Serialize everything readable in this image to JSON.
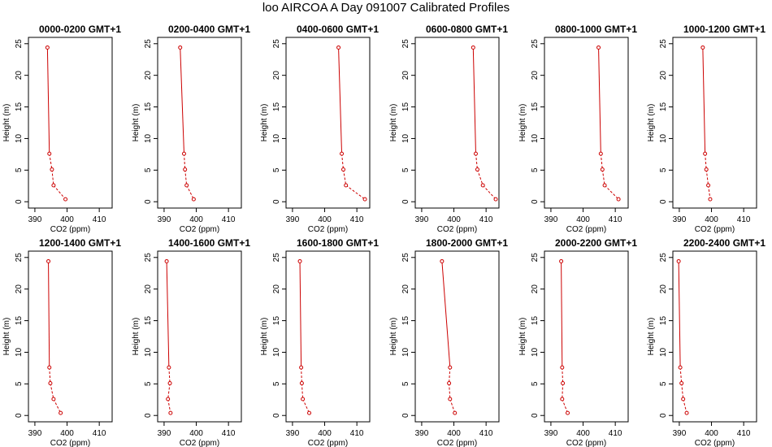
{
  "title": "loo AIRCOA A  Day 091007  Calibrated Profiles",
  "colors": {
    "line": "#cc0000",
    "axis": "#000000"
  },
  "chart_data": [
    {
      "type": "line",
      "title": "0000-0200 GMT+1",
      "xlabel": "CO2 (ppm)",
      "ylabel": "Height (m)",
      "xlim": [
        388,
        414
      ],
      "ylim": [
        -1,
        26
      ],
      "xticks": [
        390,
        400,
        410
      ],
      "yticks": [
        0,
        5,
        10,
        15,
        20,
        25
      ],
      "heights": [
        24.4,
        7.6,
        5.1,
        2.6,
        0.4
      ],
      "co2": [
        393.9,
        394.5,
        395.3,
        395.8,
        399.5
      ]
    },
    {
      "type": "line",
      "title": "0200-0400 GMT+1",
      "xlabel": "CO2 (ppm)",
      "ylabel": "Height (m)",
      "xlim": [
        388,
        414
      ],
      "ylim": [
        -1,
        26
      ],
      "xticks": [
        390,
        400,
        410
      ],
      "yticks": [
        0,
        5,
        10,
        15,
        20,
        25
      ],
      "heights": [
        24.4,
        7.6,
        5.1,
        2.6,
        0.4
      ],
      "co2": [
        395.0,
        396.2,
        396.5,
        397.0,
        399.2
      ]
    },
    {
      "type": "line",
      "title": "0400-0600 GMT+1",
      "xlabel": "CO2 (ppm)",
      "ylabel": "Height (m)",
      "xlim": [
        388,
        414
      ],
      "ylim": [
        -1,
        26
      ],
      "xticks": [
        390,
        400,
        410
      ],
      "yticks": [
        0,
        5,
        10,
        15,
        20,
        25
      ],
      "heights": [
        24.4,
        7.6,
        5.1,
        2.6,
        0.4
      ],
      "co2": [
        404.3,
        405.3,
        405.8,
        406.6,
        412.5
      ]
    },
    {
      "type": "line",
      "title": "0600-0800 GMT+1",
      "xlabel": "CO2 (ppm)",
      "ylabel": "Height (m)",
      "xlim": [
        388,
        414
      ],
      "ylim": [
        -1,
        26
      ],
      "xticks": [
        390,
        400,
        410
      ],
      "yticks": [
        0,
        5,
        10,
        15,
        20,
        25
      ],
      "heights": [
        24.4,
        7.6,
        5.1,
        2.6,
        0.4
      ],
      "co2": [
        406.0,
        406.8,
        407.3,
        409.0,
        413.0
      ]
    },
    {
      "type": "line",
      "title": "0800-1000 GMT+1",
      "xlabel": "CO2 (ppm)",
      "ylabel": "Height (m)",
      "xlim": [
        388,
        414
      ],
      "ylim": [
        -1,
        26
      ],
      "xticks": [
        390,
        400,
        410
      ],
      "yticks": [
        0,
        5,
        10,
        15,
        20,
        25
      ],
      "heights": [
        24.4,
        7.6,
        5.1,
        2.6,
        0.4
      ],
      "co2": [
        404.8,
        405.5,
        406.0,
        406.7,
        411.0
      ]
    },
    {
      "type": "line",
      "title": "1000-1200 GMT+1",
      "xlabel": "CO2 (ppm)",
      "ylabel": "Height (m)",
      "xlim": [
        388,
        414
      ],
      "ylim": [
        -1,
        26
      ],
      "xticks": [
        390,
        400,
        410
      ],
      "yticks": [
        0,
        5,
        10,
        15,
        20,
        25
      ],
      "heights": [
        24.4,
        7.6,
        5.1,
        2.6,
        0.4
      ],
      "co2": [
        397.3,
        398.0,
        398.4,
        399.0,
        399.6
      ]
    },
    {
      "type": "line",
      "title": "1200-1400 GMT+1",
      "xlabel": "CO2 (ppm)",
      "ylabel": "Height (m)",
      "xlim": [
        388,
        414
      ],
      "ylim": [
        -1,
        26
      ],
      "xticks": [
        390,
        400,
        410
      ],
      "yticks": [
        0,
        5,
        10,
        15,
        20,
        25
      ],
      "heights": [
        24.4,
        7.6,
        5.1,
        2.6,
        0.4
      ],
      "co2": [
        394.2,
        394.5,
        394.8,
        395.8,
        398.0
      ]
    },
    {
      "type": "line",
      "title": "1400-1600 GMT+1",
      "xlabel": "CO2 (ppm)",
      "ylabel": "Height (m)",
      "xlim": [
        388,
        414
      ],
      "ylim": [
        -1,
        26
      ],
      "xticks": [
        390,
        400,
        410
      ],
      "yticks": [
        0,
        5,
        10,
        15,
        20,
        25
      ],
      "heights": [
        24.4,
        7.6,
        5.1,
        2.6,
        0.4
      ],
      "co2": [
        390.8,
        391.5,
        391.8,
        391.2,
        392.0
      ]
    },
    {
      "type": "line",
      "title": "1600-1800 GMT+1",
      "xlabel": "CO2 (ppm)",
      "ylabel": "Height (m)",
      "xlim": [
        388,
        414
      ],
      "ylim": [
        -1,
        26
      ],
      "xticks": [
        390,
        400,
        410
      ],
      "yticks": [
        0,
        5,
        10,
        15,
        20,
        25
      ],
      "heights": [
        24.4,
        7.6,
        5.1,
        2.6,
        0.4
      ],
      "co2": [
        392.3,
        392.7,
        392.9,
        393.2,
        395.2
      ]
    },
    {
      "type": "line",
      "title": "1800-2000 GMT+1",
      "xlabel": "CO2 (ppm)",
      "ylabel": "Height (m)",
      "xlim": [
        388,
        414
      ],
      "ylim": [
        -1,
        26
      ],
      "xticks": [
        390,
        400,
        410
      ],
      "yticks": [
        0,
        5,
        10,
        15,
        20,
        25
      ],
      "heights": [
        24.4,
        7.6,
        5.1,
        2.6,
        0.4
      ],
      "co2": [
        396.3,
        398.8,
        398.5,
        398.8,
        400.3
      ]
    },
    {
      "type": "line",
      "title": "2000-2200 GMT+1",
      "xlabel": "CO2 (ppm)",
      "ylabel": "Height (m)",
      "xlim": [
        388,
        414
      ],
      "ylim": [
        -1,
        26
      ],
      "xticks": [
        390,
        400,
        410
      ],
      "yticks": [
        0,
        5,
        10,
        15,
        20,
        25
      ],
      "heights": [
        24.4,
        7.6,
        5.1,
        2.6,
        0.4
      ],
      "co2": [
        393.2,
        393.5,
        393.7,
        393.5,
        395.2
      ]
    },
    {
      "type": "line",
      "title": "2200-2400 GMT+1",
      "xlabel": "CO2 (ppm)",
      "ylabel": "Height (m)",
      "xlim": [
        388,
        414
      ],
      "ylim": [
        -1,
        26
      ],
      "xticks": [
        390,
        400,
        410
      ],
      "yticks": [
        0,
        5,
        10,
        15,
        20,
        25
      ],
      "heights": [
        24.4,
        7.6,
        5.1,
        2.6,
        0.4
      ],
      "co2": [
        389.8,
        390.3,
        390.7,
        391.2,
        392.3
      ]
    }
  ]
}
